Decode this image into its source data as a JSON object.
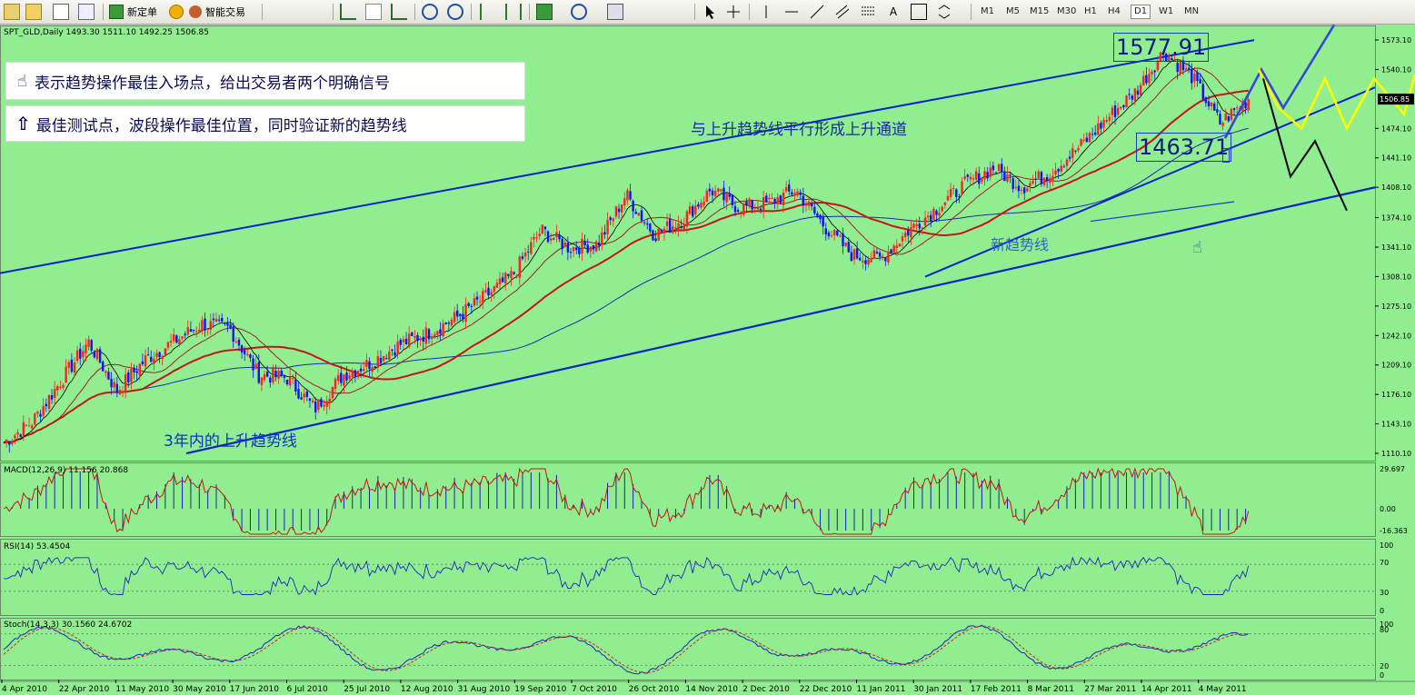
{
  "toolbar": {
    "new_order_label": "新定单",
    "expert_label": "智能交易",
    "timeframes": [
      "M1",
      "M5",
      "M15",
      "M30",
      "H1",
      "H4",
      "D1",
      "W1",
      "MN"
    ],
    "active_timeframe": "D1"
  },
  "chart": {
    "header": "SPT_GLD,Daily  1493.30 1511.10 1492.25 1506.85",
    "current_price": "1506.85",
    "price_ticks": [
      "1573.10",
      "1540.10",
      "1506.85",
      "1474.10",
      "1441.10",
      "1408.10",
      "1374.10",
      "1341.10",
      "1308.10",
      "1275.10",
      "1242.10",
      "1209.10",
      "1176.10",
      "1143.10",
      "1110.10"
    ],
    "date_ticks": [
      "4 Apr 2010",
      "22 Apr 2010",
      "11 May 2010",
      "30 May 2010",
      "17 Jun 2010",
      "6 Jul 2010",
      "25 Jul 2010",
      "12 Aug 2010",
      "31 Aug 2010",
      "19 Sep 2010",
      "7 Oct 2010",
      "26 Oct 2010",
      "14 Nov 2010",
      "2 Dec 2010",
      "22 Dec 2010",
      "11 Jan 2011",
      "30 Jan 2011",
      "17 Feb 2011",
      "8 Mar 2011",
      "27 Mar 2011",
      "14 Apr 2011",
      "4 May 2011"
    ]
  },
  "annotations": {
    "note1": "表示趋势操作最佳入场点，给出交易者两个明确信号",
    "note2": "最佳测试点，波段操作最佳位置，同时验证新的趋势线",
    "channel": "与上升趋势线平行形成上升通道",
    "new_trend": "新趋势线",
    "trend3y": "3年内的上升趋势线",
    "high": "1577.91",
    "low": "1463.71"
  },
  "indicators": {
    "macd": {
      "label": "MACD(12,26,9) 11.156 20.868",
      "ticks": [
        "29.697",
        "0.00",
        "-16.363"
      ]
    },
    "rsi": {
      "label": "RSI(14) 53.4504",
      "ticks": [
        "100",
        "70",
        "30",
        "0"
      ]
    },
    "stoch": {
      "label": "Stoch(14,3,3) 30.1560 24.6702",
      "ticks": [
        "100",
        "80",
        "20",
        "0"
      ]
    }
  },
  "colors": {
    "bg": "#90ee90",
    "bull": "#ff2020",
    "bear": "#1010ff",
    "trendline": "#0a24c8",
    "ma_red": "#c81414",
    "zigzag_yellow": "#ffff00"
  },
  "chart_data": {
    "type": "candlestick",
    "symbol": "SPT_GLD",
    "timeframe": "Daily",
    "ohlc_last": {
      "open": 1493.3,
      "high": 1511.1,
      "low": 1492.25,
      "close": 1506.85
    },
    "ylim": [
      1110.1,
      1573.1
    ],
    "close_path": [
      [
        "4 Apr 2010",
        1122
      ],
      [
        "22 Apr 2010",
        1145
      ],
      [
        "1 May 2010",
        1190
      ],
      [
        "11 May 2010",
        1235
      ],
      [
        "20 May 2010",
        1180
      ],
      [
        "30 May 2010",
        1215
      ],
      [
        "8 Jun 2010",
        1235
      ],
      [
        "17 Jun 2010",
        1255
      ],
      [
        "25 Jun 2010",
        1250
      ],
      [
        "6 Jul 2010",
        1198
      ],
      [
        "16 Jul 2010",
        1195
      ],
      [
        "25 Jul 2010",
        1160
      ],
      [
        "4 Aug 2010",
        1198
      ],
      [
        "12 Aug 2010",
        1212
      ],
      [
        "22 Aug 2010",
        1232
      ],
      [
        "31 Aug 2010",
        1245
      ],
      [
        "10 Sep 2010",
        1262
      ],
      [
        "19 Sep 2010",
        1285
      ],
      [
        "29 Sep 2010",
        1310
      ],
      [
        "7 Oct 2010",
        1360
      ],
      [
        "17 Oct 2010",
        1340
      ],
      [
        "26 Oct 2010",
        1345
      ],
      [
        "5 Nov 2010",
        1400
      ],
      [
        "14 Nov 2010",
        1355
      ],
      [
        "24 Nov 2010",
        1372
      ],
      [
        "2 Dec 2010",
        1405
      ],
      [
        "12 Dec 2010",
        1385
      ],
      [
        "22 Dec 2010",
        1390
      ],
      [
        "1 Jan 2011",
        1405
      ],
      [
        "11 Jan 2011",
        1365
      ],
      [
        "20 Jan 2011",
        1332
      ],
      [
        "30 Jan 2011",
        1328
      ],
      [
        "8 Feb 2011",
        1360
      ],
      [
        "17 Feb 2011",
        1385
      ],
      [
        "27 Feb 2011",
        1412
      ],
      [
        "8 Mar 2011",
        1430
      ],
      [
        "17 Mar 2011",
        1408
      ],
      [
        "27 Mar 2011",
        1425
      ],
      [
        "4 Apr 2011",
        1452
      ],
      [
        "14 Apr 2011",
        1485
      ],
      [
        "24 Apr 2011",
        1515
      ],
      [
        "28 Apr 2011",
        1560
      ],
      [
        "2 May 2011",
        1532
      ],
      [
        "4 May 2011",
        1480
      ],
      [
        "7 May 2011",
        1506.85
      ]
    ]
  }
}
